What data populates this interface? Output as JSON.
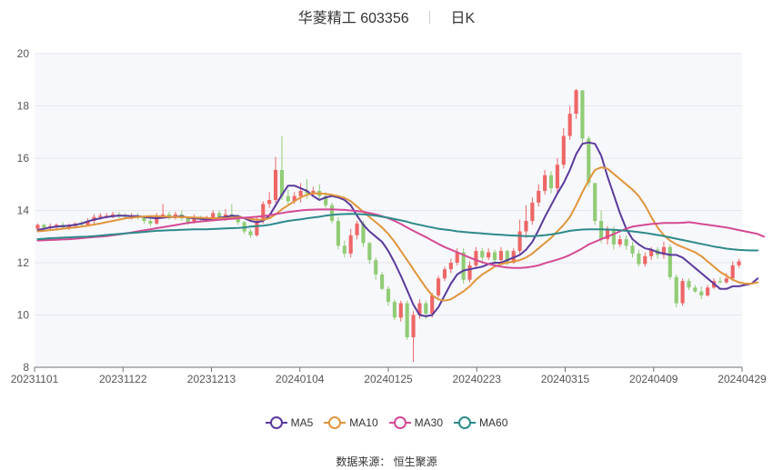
{
  "header": {
    "title": "华菱精工 603356",
    "period": "日K"
  },
  "source": {
    "label": "数据来源：",
    "name": "恒生聚源"
  },
  "colors": {
    "up": "#ee6666",
    "down": "#91cc75",
    "MA5": "#5a3a9b",
    "MA10": "#e0953c",
    "MA30": "#d44a95",
    "MA60": "#2e8a8a"
  },
  "chart_data": {
    "type": "candlestick",
    "ylim": [
      8,
      20
    ],
    "yticks": [
      8,
      10,
      12,
      14,
      16,
      18,
      20
    ],
    "xticks": [
      "20231101",
      "20231122",
      "20231213",
      "20240104",
      "20240125",
      "20240223",
      "20240315",
      "20240409",
      "20240429"
    ],
    "candles_ohlc": [
      [
        13.3,
        13.45,
        13.2,
        13.5
      ],
      [
        13.45,
        13.35,
        13.3,
        13.5
      ],
      [
        13.35,
        13.4,
        13.25,
        13.5
      ],
      [
        13.4,
        13.45,
        13.3,
        13.5
      ],
      [
        13.45,
        13.35,
        13.3,
        13.55
      ],
      [
        13.35,
        13.4,
        13.25,
        13.5
      ],
      [
        13.4,
        13.5,
        13.35,
        13.55
      ],
      [
        13.5,
        13.45,
        13.35,
        13.6
      ],
      [
        13.45,
        13.6,
        13.4,
        13.7
      ],
      [
        13.6,
        13.75,
        13.5,
        13.85
      ],
      [
        13.75,
        13.8,
        13.65,
        13.9
      ],
      [
        13.8,
        13.8,
        13.7,
        13.9
      ],
      [
        13.8,
        13.85,
        13.7,
        13.95
      ],
      [
        13.85,
        13.8,
        13.7,
        13.95
      ],
      [
        13.8,
        13.75,
        13.65,
        13.9
      ],
      [
        13.75,
        13.8,
        13.65,
        13.9
      ],
      [
        13.8,
        13.75,
        13.65,
        13.9
      ],
      [
        13.75,
        13.6,
        13.5,
        13.8
      ],
      [
        13.6,
        13.5,
        13.4,
        13.7
      ],
      [
        13.5,
        13.8,
        13.45,
        13.9
      ],
      [
        13.8,
        13.85,
        13.7,
        14.25
      ],
      [
        13.85,
        13.75,
        13.65,
        13.95
      ],
      [
        13.75,
        13.85,
        13.65,
        13.95
      ],
      [
        13.85,
        13.7,
        13.6,
        14.0
      ],
      [
        13.7,
        13.55,
        13.45,
        13.75
      ],
      [
        13.55,
        13.75,
        13.5,
        13.85
      ],
      [
        13.75,
        13.65,
        13.55,
        13.8
      ],
      [
        13.65,
        13.7,
        13.55,
        13.8
      ],
      [
        13.7,
        13.9,
        13.6,
        14.0
      ],
      [
        13.9,
        13.7,
        13.6,
        14.0
      ],
      [
        13.7,
        13.85,
        13.6,
        14.05
      ],
      [
        13.85,
        13.8,
        13.7,
        14.25
      ],
      [
        13.8,
        13.55,
        13.45,
        13.85
      ],
      [
        13.55,
        13.2,
        13.1,
        13.6
      ],
      [
        13.2,
        13.05,
        12.95,
        13.3
      ],
      [
        13.05,
        13.6,
        13.0,
        13.75
      ],
      [
        13.6,
        14.25,
        13.5,
        14.35
      ],
      [
        14.25,
        14.4,
        14.1,
        14.7
      ],
      [
        14.4,
        15.55,
        14.3,
        16.05
      ],
      [
        15.55,
        14.55,
        14.4,
        16.85
      ],
      [
        14.55,
        14.35,
        14.2,
        14.8
      ],
      [
        14.35,
        14.55,
        14.25,
        14.7
      ],
      [
        14.55,
        14.75,
        14.3,
        15.05
      ],
      [
        14.75,
        14.65,
        14.45,
        15.2
      ],
      [
        14.65,
        14.75,
        14.55,
        14.9
      ],
      [
        14.75,
        14.55,
        14.45,
        15.0
      ],
      [
        14.55,
        14.2,
        14.1,
        14.7
      ],
      [
        14.2,
        13.6,
        13.5,
        14.3
      ],
      [
        13.6,
        12.65,
        12.5,
        13.75
      ],
      [
        12.65,
        12.35,
        12.2,
        12.85
      ],
      [
        12.35,
        13.05,
        12.2,
        13.3
      ],
      [
        13.05,
        13.5,
        12.9,
        13.6
      ],
      [
        13.5,
        12.75,
        12.6,
        13.6
      ],
      [
        12.75,
        12.1,
        11.95,
        12.8
      ],
      [
        12.1,
        11.55,
        11.35,
        12.2
      ],
      [
        11.55,
        11.0,
        10.95,
        11.65
      ],
      [
        11.0,
        10.5,
        10.35,
        11.1
      ],
      [
        10.5,
        9.9,
        9.8,
        10.6
      ],
      [
        9.9,
        10.45,
        9.75,
        10.55
      ],
      [
        10.45,
        9.15,
        9.05,
        10.55
      ],
      [
        9.15,
        10.0,
        8.2,
        10.15
      ],
      [
        10.0,
        10.45,
        9.85,
        10.6
      ],
      [
        10.45,
        10.05,
        9.85,
        10.55
      ],
      [
        10.05,
        10.75,
        9.9,
        10.85
      ],
      [
        10.75,
        11.4,
        10.65,
        11.5
      ],
      [
        11.4,
        11.75,
        11.3,
        11.85
      ],
      [
        11.75,
        12.0,
        11.6,
        12.15
      ],
      [
        12.0,
        12.4,
        11.9,
        12.55
      ],
      [
        12.4,
        11.35,
        11.2,
        12.55
      ],
      [
        11.35,
        11.9,
        11.25,
        12.05
      ],
      [
        11.9,
        12.45,
        11.8,
        12.6
      ],
      [
        12.45,
        12.2,
        11.95,
        12.55
      ],
      [
        12.2,
        12.4,
        12.1,
        12.55
      ],
      [
        12.4,
        12.1,
        11.95,
        12.5
      ],
      [
        12.1,
        12.45,
        12.0,
        12.6
      ],
      [
        12.45,
        12.0,
        11.9,
        12.5
      ],
      [
        12.0,
        12.45,
        11.95,
        12.55
      ],
      [
        12.45,
        13.2,
        12.35,
        13.65
      ],
      [
        13.2,
        13.6,
        12.95,
        14.2
      ],
      [
        13.6,
        14.3,
        13.45,
        14.5
      ],
      [
        14.3,
        14.75,
        14.15,
        15.0
      ],
      [
        14.75,
        15.35,
        14.6,
        15.55
      ],
      [
        15.35,
        14.85,
        14.65,
        15.5
      ],
      [
        14.85,
        15.75,
        14.7,
        16.0
      ],
      [
        15.75,
        16.85,
        15.6,
        17.15
      ],
      [
        16.85,
        17.7,
        16.7,
        18.0
      ],
      [
        17.7,
        18.6,
        17.5,
        18.65
      ],
      [
        18.6,
        16.75,
        16.55,
        17.8
      ],
      [
        16.75,
        15.05,
        14.9,
        16.85
      ],
      [
        15.05,
        13.6,
        13.45,
        14.15
      ],
      [
        13.6,
        12.9,
        12.75,
        14.0
      ],
      [
        12.9,
        13.25,
        12.7,
        13.4
      ],
      [
        13.25,
        12.7,
        12.5,
        13.4
      ],
      [
        12.7,
        12.9,
        12.6,
        13.05
      ],
      [
        12.9,
        12.65,
        12.5,
        13.05
      ],
      [
        12.65,
        12.35,
        12.2,
        12.8
      ],
      [
        12.35,
        11.95,
        11.85,
        12.5
      ],
      [
        11.95,
        12.25,
        11.85,
        12.4
      ],
      [
        12.25,
        12.5,
        12.1,
        12.6
      ],
      [
        12.5,
        12.3,
        12.15,
        12.6
      ],
      [
        12.3,
        12.6,
        12.15,
        12.8
      ],
      [
        12.6,
        11.45,
        11.35,
        12.7
      ],
      [
        11.45,
        10.45,
        10.3,
        11.55
      ],
      [
        10.45,
        11.3,
        10.35,
        11.4
      ],
      [
        11.3,
        11.05,
        10.95,
        11.4
      ],
      [
        11.05,
        10.9,
        10.85,
        11.15
      ],
      [
        10.9,
        10.75,
        10.6,
        11.1
      ],
      [
        10.75,
        11.05,
        10.7,
        11.15
      ],
      [
        11.05,
        11.3,
        11.0,
        11.4
      ],
      [
        11.3,
        11.25,
        11.2,
        11.45
      ],
      [
        11.25,
        11.4,
        11.2,
        11.6
      ],
      [
        11.4,
        11.9,
        11.3,
        12.05
      ],
      [
        11.9,
        12.05,
        11.8,
        12.15
      ]
    ],
    "series": [
      {
        "name": "MA5",
        "values": [
          13.25,
          13.3,
          13.35,
          13.38,
          13.4,
          13.42,
          13.45,
          13.5,
          13.58,
          13.65,
          13.7,
          13.75,
          13.78,
          13.8,
          13.8,
          13.78,
          13.78,
          13.75,
          13.72,
          13.7,
          13.72,
          13.75,
          13.75,
          13.78,
          13.72,
          13.7,
          13.68,
          13.65,
          13.68,
          13.72,
          13.75,
          13.8,
          13.78,
          13.7,
          13.6,
          13.55,
          13.6,
          13.8,
          14.2,
          14.6,
          14.95,
          14.95,
          14.85,
          14.75,
          14.55,
          14.4,
          14.5,
          14.55,
          14.5,
          14.4,
          14.2,
          13.8,
          13.45,
          13.2,
          13.0,
          12.8,
          12.45,
          12.0,
          11.5,
          10.95,
          10.4,
          10.0,
          9.95,
          10.0,
          10.3,
          10.75,
          11.2,
          11.55,
          11.7,
          11.75,
          11.8,
          11.85,
          11.95,
          12.0,
          12.0,
          12.1,
          12.2,
          12.3,
          12.5,
          12.8,
          13.25,
          13.75,
          14.2,
          14.65,
          15.05,
          15.55,
          16.15,
          16.55,
          16.6,
          16.55,
          16.1,
          15.3,
          14.6,
          13.9,
          13.3,
          12.9,
          12.7,
          12.55,
          12.5,
          12.4,
          12.35,
          12.3,
          12.3,
          12.2,
          12.0,
          11.8,
          11.6,
          11.4,
          11.2,
          11.0,
          11.0,
          11.1,
          11.1,
          11.15,
          11.2,
          11.4
        ]
      },
      {
        "name": "MA10",
        "values": [
          13.2,
          13.22,
          13.25,
          13.27,
          13.3,
          13.33,
          13.35,
          13.38,
          13.42,
          13.46,
          13.5,
          13.55,
          13.6,
          13.65,
          13.7,
          13.72,
          13.75,
          13.77,
          13.78,
          13.78,
          13.77,
          13.76,
          13.75,
          13.75,
          13.74,
          13.73,
          13.72,
          13.71,
          13.7,
          13.7,
          13.7,
          13.72,
          13.74,
          13.72,
          13.68,
          13.65,
          13.65,
          13.7,
          13.85,
          14.05,
          14.2,
          14.35,
          14.5,
          14.6,
          14.65,
          14.65,
          14.63,
          14.6,
          14.55,
          14.48,
          14.35,
          14.15,
          13.95,
          13.75,
          13.55,
          13.35,
          13.1,
          12.8,
          12.45,
          12.1,
          11.75,
          11.4,
          11.05,
          10.75,
          10.6,
          10.55,
          10.6,
          10.75,
          10.9,
          11.1,
          11.35,
          11.55,
          11.7,
          11.85,
          11.95,
          12.0,
          12.05,
          12.1,
          12.2,
          12.35,
          12.55,
          12.75,
          12.95,
          13.2,
          13.45,
          13.75,
          14.2,
          14.7,
          15.15,
          15.55,
          15.65,
          15.6,
          15.4,
          15.2,
          15.0,
          14.8,
          14.55,
          14.2,
          13.75,
          13.35,
          13.05,
          12.85,
          12.7,
          12.6,
          12.5,
          12.4,
          12.25,
          12.05,
          11.85,
          11.65,
          11.5,
          11.35,
          11.25,
          11.2,
          11.2,
          11.25
        ]
      },
      {
        "name": "MA30",
        "values": [
          12.85,
          12.86,
          12.87,
          12.88,
          12.89,
          12.9,
          12.92,
          12.94,
          12.96,
          12.98,
          13.0,
          13.02,
          13.05,
          13.08,
          13.12,
          13.16,
          13.2,
          13.24,
          13.28,
          13.32,
          13.36,
          13.4,
          13.44,
          13.48,
          13.52,
          13.55,
          13.58,
          13.6,
          13.62,
          13.64,
          13.66,
          13.68,
          13.7,
          13.72,
          13.74,
          13.76,
          13.78,
          13.82,
          13.86,
          13.9,
          13.94,
          13.97,
          14.0,
          14.02,
          14.03,
          14.04,
          14.04,
          14.04,
          14.03,
          14.02,
          14.0,
          13.98,
          13.95,
          13.9,
          13.85,
          13.78,
          13.7,
          13.6,
          13.48,
          13.35,
          13.22,
          13.1,
          12.98,
          12.85,
          12.72,
          12.6,
          12.5,
          12.4,
          12.3,
          12.2,
          12.1,
          12.02,
          11.95,
          11.9,
          11.85,
          11.82,
          11.8,
          11.8,
          11.82,
          11.85,
          11.9,
          11.98,
          12.05,
          12.12,
          12.2,
          12.3,
          12.42,
          12.55,
          12.7,
          12.8,
          12.9,
          13.0,
          13.1,
          13.2,
          13.3,
          13.38,
          13.42,
          13.45,
          13.48,
          13.5,
          13.52,
          13.52,
          13.52,
          13.53,
          13.55,
          13.52,
          13.48,
          13.45,
          13.42,
          13.38,
          13.35,
          13.3,
          13.25,
          13.2,
          13.15,
          13.1,
          13.0
        ]
      },
      {
        "name": "MA60",
        "values": [
          12.9,
          12.92,
          12.94,
          12.95,
          12.96,
          12.97,
          12.98,
          12.99,
          13.0,
          13.02,
          13.04,
          13.06,
          13.08,
          13.1,
          13.12,
          13.14,
          13.16,
          13.18,
          13.2,
          13.22,
          13.23,
          13.24,
          13.25,
          13.26,
          13.27,
          13.28,
          13.28,
          13.28,
          13.29,
          13.3,
          13.31,
          13.32,
          13.33,
          13.35,
          13.38,
          13.4,
          13.42,
          13.45,
          13.5,
          13.55,
          13.6,
          13.63,
          13.66,
          13.7,
          13.73,
          13.76,
          13.8,
          13.83,
          13.85,
          13.86,
          13.87,
          13.86,
          13.85,
          13.83,
          13.8,
          13.76,
          13.72,
          13.67,
          13.62,
          13.57,
          13.5,
          13.45,
          13.4,
          13.35,
          13.3,
          13.27,
          13.24,
          13.2,
          13.18,
          13.16,
          13.14,
          13.12,
          13.1,
          13.08,
          13.07,
          13.05,
          13.04,
          13.03,
          13.02,
          13.02,
          13.03,
          13.05,
          13.08,
          13.12,
          13.17,
          13.22,
          13.25,
          13.27,
          13.28,
          13.28,
          13.28,
          13.27,
          13.26,
          13.24,
          13.22,
          13.2,
          13.17,
          13.14,
          13.1,
          13.06,
          13.02,
          12.97,
          12.92,
          12.87,
          12.82,
          12.77,
          12.72,
          12.67,
          12.62,
          12.58,
          12.54,
          12.51,
          12.49,
          12.48,
          12.47,
          12.47
        ]
      }
    ]
  }
}
